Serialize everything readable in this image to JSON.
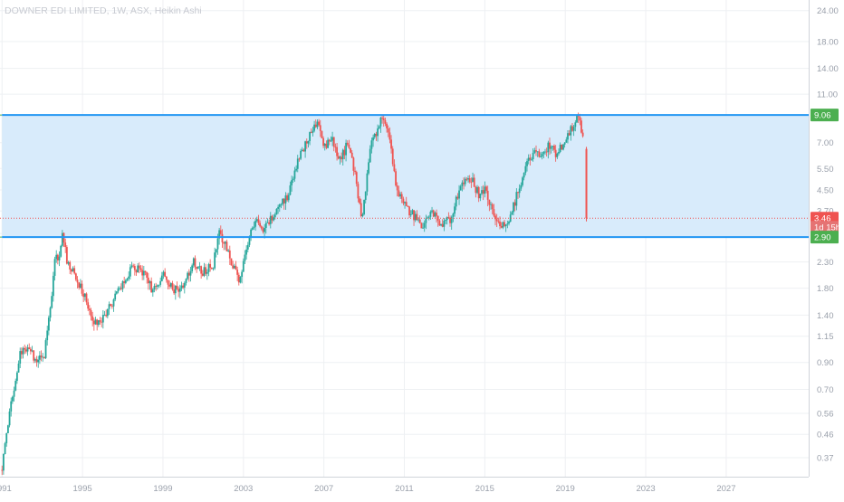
{
  "chart_data": {
    "type": "candlestick",
    "title": "DOWNER EDI LIMITED, 1W, ASX, Heikin Ashi",
    "y_scale": "log",
    "ylim": [
      0.31,
      26.5
    ],
    "xlim": [
      1990.9,
      2031.1
    ],
    "y_ticks": [
      "24.00",
      "18.00",
      "14.00",
      "11.00",
      "9.00",
      "7.00",
      "5.50",
      "4.50",
      "3.70",
      "3.00",
      "2.30",
      "1.80",
      "1.40",
      "1.15",
      "0.90",
      "0.70",
      "0.56",
      "0.46",
      "0.37"
    ],
    "x_ticks": [
      "1991",
      "1995",
      "1999",
      "2003",
      "2007",
      "2011",
      "2015",
      "2019",
      "2023",
      "2027"
    ],
    "grid": true,
    "price_path": [
      [
        1991.0,
        0.33
      ],
      [
        1991.3,
        0.52
      ],
      [
        1991.6,
        0.72
      ],
      [
        1991.9,
        0.98
      ],
      [
        1992.3,
        1.05
      ],
      [
        1992.7,
        0.9
      ],
      [
        1993.1,
        0.98
      ],
      [
        1993.4,
        1.45
      ],
      [
        1993.6,
        2.3
      ],
      [
        1993.9,
        2.5
      ],
      [
        1994.0,
        2.95
      ],
      [
        1994.3,
        2.2
      ],
      [
        1994.7,
        2.0
      ],
      [
        1995.2,
        1.6
      ],
      [
        1995.6,
        1.3
      ],
      [
        1996.0,
        1.35
      ],
      [
        1996.5,
        1.6
      ],
      [
        1997.0,
        1.9
      ],
      [
        1997.5,
        2.2
      ],
      [
        1998.0,
        2.1
      ],
      [
        1998.5,
        1.75
      ],
      [
        1999.0,
        2.05
      ],
      [
        1999.5,
        1.75
      ],
      [
        2000.0,
        1.8
      ],
      [
        2000.5,
        2.3
      ],
      [
        2001.0,
        2.1
      ],
      [
        2001.5,
        2.25
      ],
      [
        2001.8,
        3.1
      ],
      [
        2002.3,
        2.4
      ],
      [
        2002.8,
        1.95
      ],
      [
        2003.2,
        2.7
      ],
      [
        2003.6,
        3.5
      ],
      [
        2004.0,
        3.1
      ],
      [
        2004.6,
        3.6
      ],
      [
        2005.2,
        4.3
      ],
      [
        2005.8,
        6.2
      ],
      [
        2006.3,
        7.6
      ],
      [
        2006.7,
        8.6
      ],
      [
        2007.0,
        6.8
      ],
      [
        2007.4,
        7.3
      ],
      [
        2007.8,
        5.9
      ],
      [
        2008.2,
        7.0
      ],
      [
        2008.6,
        4.9
      ],
      [
        2008.9,
        3.35
      ],
      [
        2009.3,
        6.6
      ],
      [
        2009.7,
        8.2
      ],
      [
        2010.0,
        8.9
      ],
      [
        2010.3,
        6.9
      ],
      [
        2010.6,
        4.6
      ],
      [
        2011.0,
        3.9
      ],
      [
        2011.5,
        3.5
      ],
      [
        2011.9,
        3.1
      ],
      [
        2012.3,
        3.7
      ],
      [
        2012.8,
        3.3
      ],
      [
        2013.3,
        3.4
      ],
      [
        2013.8,
        4.8
      ],
      [
        2014.3,
        5.1
      ],
      [
        2014.7,
        4.3
      ],
      [
        2015.0,
        4.6
      ],
      [
        2015.4,
        3.7
      ],
      [
        2015.8,
        3.1
      ],
      [
        2016.3,
        3.6
      ],
      [
        2016.7,
        4.6
      ],
      [
        2017.0,
        5.6
      ],
      [
        2017.4,
        6.3
      ],
      [
        2017.8,
        6.1
      ],
      [
        2018.2,
        6.8
      ],
      [
        2018.6,
        6.3
      ],
      [
        2019.0,
        7.2
      ],
      [
        2019.4,
        8.2
      ],
      [
        2019.7,
        8.9
      ],
      [
        2019.95,
        6.6
      ],
      [
        2020.05,
        3.46
      ]
    ],
    "channel": {
      "upper": 9.06,
      "lower": 2.9,
      "x_start": 1991.0,
      "x_end": 2031.1,
      "fill_color": "#d6eafb",
      "line_color": "#2196f3"
    },
    "guide_line_color": "#4caf50",
    "last_price": 3.46,
    "last_price_color": "#ef5350",
    "up_color": "#26a69a",
    "down_color": "#ef5350",
    "price_labels": [
      {
        "text": "9.06",
        "value": 9.06,
        "color": "#4caf50"
      },
      {
        "text": "3.46",
        "value": 3.46,
        "color": "#ef5350"
      },
      {
        "text": "1d 15h",
        "value": 3.18,
        "color": "#e57373"
      },
      {
        "text": "2.90",
        "value": 2.9,
        "color": "#4caf50"
      }
    ]
  }
}
